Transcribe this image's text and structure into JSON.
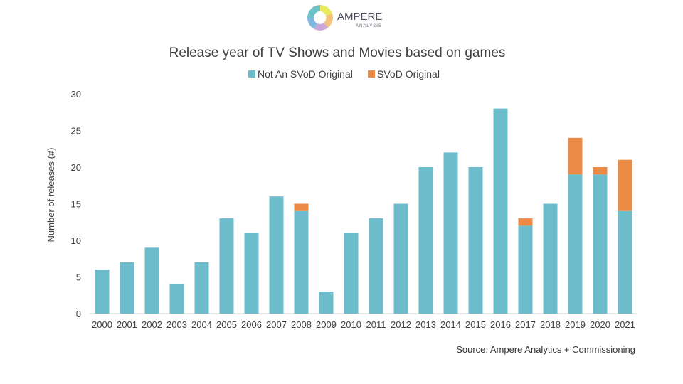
{
  "logo": {
    "name": "AMPERE",
    "sub": "ANALYSIS",
    "colors": [
      "#6cc2c7",
      "#eaea5e",
      "#f2a85e",
      "#c9a7d8",
      "#7fb8e0"
    ]
  },
  "chart_data": {
    "type": "bar",
    "stacked": true,
    "title": "Release year of TV Shows and Movies based on games",
    "ylabel": "Number of releases (#)",
    "xlabel": "",
    "ylim": [
      0,
      30
    ],
    "yticks": [
      0,
      5,
      10,
      15,
      20,
      25,
      30
    ],
    "grid": false,
    "legend_position": "top",
    "categories": [
      "2000",
      "2001",
      "2002",
      "2003",
      "2004",
      "2005",
      "2006",
      "2007",
      "2008",
      "2009",
      "2010",
      "2011",
      "2012",
      "2013",
      "2014",
      "2015",
      "2016",
      "2017",
      "2018",
      "2019",
      "2020",
      "2021"
    ],
    "series": [
      {
        "name": "Not An SVoD Original",
        "color": "#6cbccc",
        "values": [
          6,
          7,
          9,
          4,
          7,
          13,
          11,
          16,
          14,
          3,
          11,
          13,
          15,
          20,
          22,
          20,
          28,
          12,
          15,
          19,
          19,
          14
        ]
      },
      {
        "name": "SVoD Original",
        "color": "#ea8a45",
        "values": [
          0,
          0,
          0,
          0,
          0,
          0,
          0,
          0,
          1,
          0,
          0,
          0,
          0,
          0,
          0,
          0,
          0,
          1,
          0,
          5,
          1,
          7
        ]
      }
    ],
    "source": "Source: Ampere Analytics + Commissioning"
  }
}
